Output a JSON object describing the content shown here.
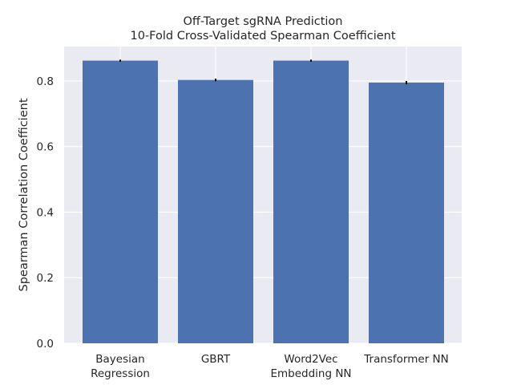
{
  "chart_data": {
    "type": "bar",
    "title": "Off-Target sgRNA Prediction",
    "subtitle": "10-Fold Cross-Validated Spearman Coefficient",
    "xlabel": "",
    "ylabel": "Spearman Correlation Coefficient",
    "categories": [
      [
        "Bayesian",
        "Regression"
      ],
      [
        "GBRT"
      ],
      [
        "Word2Vec",
        "Embedding NN"
      ],
      [
        "Transformer NN"
      ]
    ],
    "values": [
      0.862,
      0.803,
      0.862,
      0.795
    ],
    "error": [
      0.003,
      0.004,
      0.003,
      0.005
    ],
    "yticks": [
      "0.0",
      "0.2",
      "0.4",
      "0.6",
      "0.8"
    ],
    "ylim": [
      0,
      0.905
    ],
    "grid": true,
    "colors": {
      "bar": "#4c72b0",
      "background": "#eaeaf2",
      "grid": "#ffffff",
      "error": "#000000"
    }
  }
}
